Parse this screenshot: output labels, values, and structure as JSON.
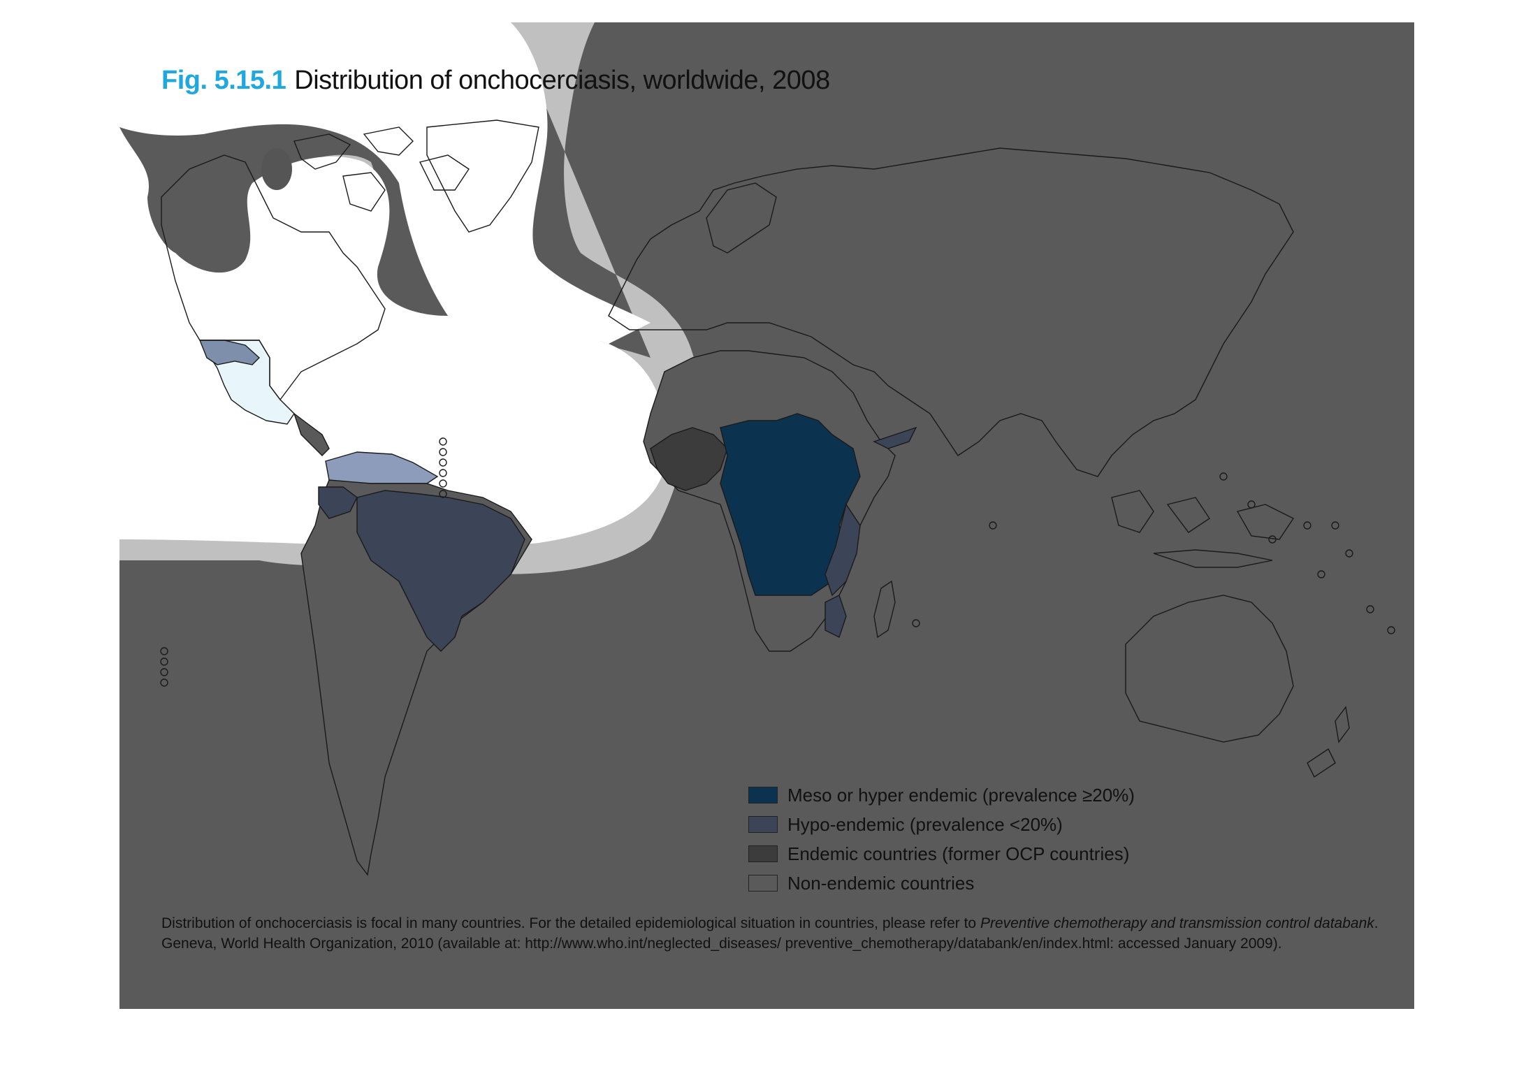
{
  "title": {
    "fig_number": "Fig. 5.15.1",
    "text": "Distribution of onchocerciasis, worldwide, 2008"
  },
  "legend": {
    "items": [
      {
        "label": "Meso or hyper endemic (prevalence ≥20%)",
        "color": "#0b3350"
      },
      {
        "label": "Hypo-endemic (prevalence <20%)",
        "color": "#3c4558"
      },
      {
        "label": "Endemic countries (former OCP countries)",
        "color": "#3c3c3c"
      },
      {
        "label": "Non-endemic countries",
        "color": "#5a5a5a"
      }
    ]
  },
  "caption": {
    "line1_pre": "Distribution of onchocerciasis is focal in many countries. For the detailed epidemiological situation in countries, please refer to ",
    "line1_italic": "Preventive chemotherapy and transmission control databank",
    "line1_post": ".",
    "line2": "Geneva, World Health Organization, 2010 (available at: http://www.who.int/neglected_diseases/ preventive_chemotherapy/databank/en/index.html: accessed January 2009)."
  },
  "colors": {
    "background": "#5a5a5a",
    "fade_white": "#ffffff",
    "fade_grey": "#c0c0c0",
    "outline": "#1a1a1a",
    "mexico_light": "#e8f6fb",
    "mexico_blue": "#7d8faa",
    "venezuela_blue": "#8d9cba"
  }
}
